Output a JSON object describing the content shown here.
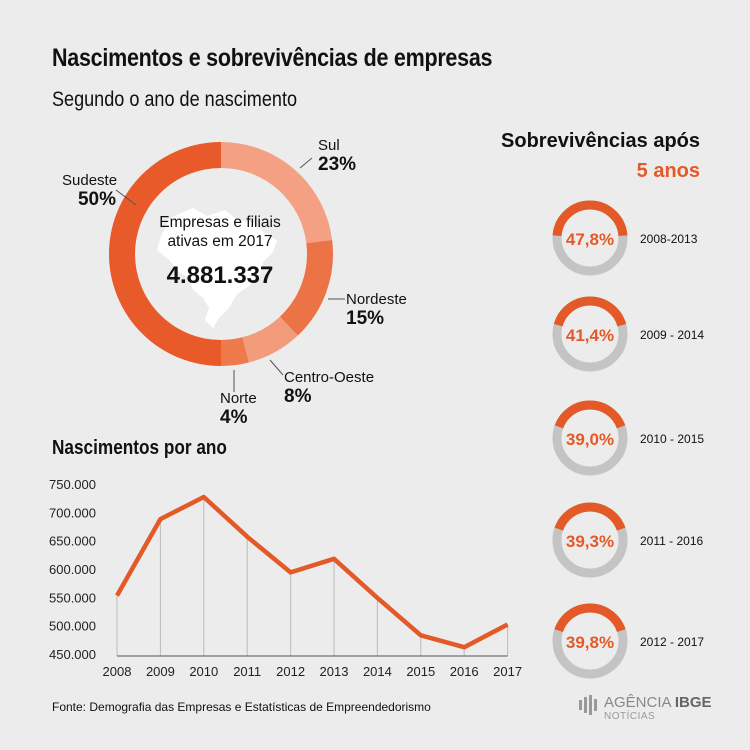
{
  "title": "Nascimentos e sobrevivências de empresas",
  "subtitle": "Segundo o ano de nascimento",
  "donut": {
    "center_caption_line1": "Empresas e filiais",
    "center_caption_line2": "ativas em 2017",
    "center_value": "4.881.337",
    "labels": {
      "sudeste": {
        "name": "Sudeste",
        "pct": "50%"
      },
      "sul": {
        "name": "Sul",
        "pct": "23%"
      },
      "nordeste": {
        "name": "Nordeste",
        "pct": "15%"
      },
      "centro_oeste": {
        "name": "Centro-Oeste",
        "pct": "8%"
      },
      "norte": {
        "name": "Norte",
        "pct": "4%"
      }
    }
  },
  "survival": {
    "title": "Sobrevivências após",
    "subtitle": "5 anos"
  },
  "line_title": "Nascimentos por ano",
  "source": "Fonte: Demografia das Empresas e Estatísticas de Empreendedorismo",
  "logo": {
    "brand1": "AGÊNCIA",
    "brand2": "IBGE",
    "sub": "NOTÍCIAS"
  },
  "colors": {
    "accent": "#e35a28",
    "sudeste": "#e85a2a",
    "sul": "#f4a083",
    "nordeste": "#ec7346",
    "centro_oeste": "#f39c7c",
    "norte": "#ee7a4c",
    "ring_gray": "#c4c4c4",
    "background": "#ececec"
  },
  "chart_data": [
    {
      "type": "pie",
      "categories": [
        "Sudeste",
        "Sul",
        "Nordeste",
        "Centro-Oeste",
        "Norte"
      ],
      "values": [
        50,
        23,
        15,
        8,
        4
      ],
      "units": "%",
      "center_label": "Empresas e filiais ativas em 2017",
      "center_value": 4881337
    },
    {
      "type": "line",
      "title": "Nascimentos por ano",
      "x": [
        "2008",
        "2009",
        "2010",
        "2011",
        "2012",
        "2013",
        "2014",
        "2015",
        "2016",
        "2017"
      ],
      "series": [
        {
          "values": [
            553000,
            688000,
            727000,
            657000,
            594000,
            618000,
            549000,
            483000,
            462000,
            502000
          ]
        }
      ],
      "yticks": [
        "750.000",
        "700.000",
        "650.000",
        "600.000",
        "550.000",
        "500.000",
        "450.000"
      ],
      "ylim": [
        450000,
        750000
      ],
      "grid": false
    },
    {
      "type": "pie",
      "title": "Sobrevivências após 5 anos",
      "items": [
        {
          "period": "2008-2013",
          "value": 47.8,
          "label": "47,8%"
        },
        {
          "period": "2009 - 2014",
          "value": 41.4,
          "label": "41,4%"
        },
        {
          "period": "2010 - 2015",
          "value": 39.0,
          "label": "39,0%"
        },
        {
          "period": "2011 - 2016",
          "value": 39.3,
          "label": "39,3%"
        },
        {
          "period": "2012 - 2017",
          "value": 39.8,
          "label": "39,8%"
        }
      ]
    }
  ]
}
